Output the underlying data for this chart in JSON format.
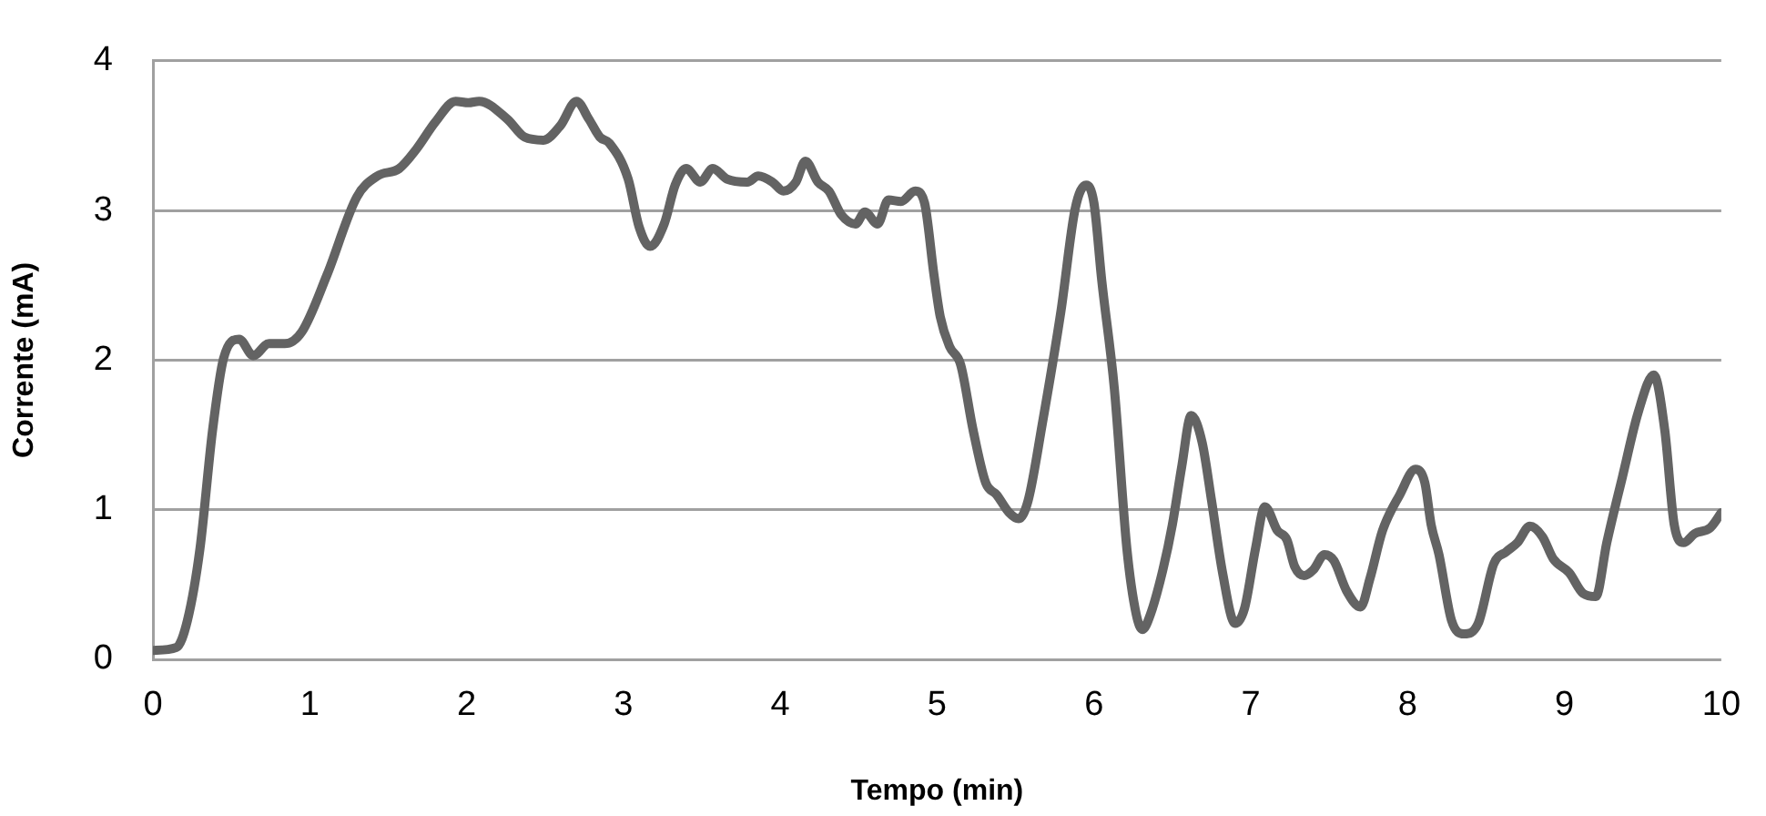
{
  "chart_data": {
    "type": "line",
    "xlabel": "Tempo (min)",
    "ylabel": "Corrente (mA)",
    "xlim": [
      0,
      10
    ],
    "xticks": [
      0,
      1,
      2,
      3,
      4,
      5,
      6,
      7,
      8,
      9,
      10
    ],
    "ylim": [
      0,
      4
    ],
    "yticks": [
      0,
      1,
      2,
      3,
      4
    ],
    "grid": "y",
    "legend": false,
    "marker": "none",
    "line_style": "solid",
    "series": [
      {
        "color": "#636363",
        "x": [
          0,
          0.15,
          0.22,
          0.3,
          0.38,
          0.45,
          0.55,
          0.64,
          0.74,
          0.84,
          0.95,
          1.11,
          1.3,
          1.43,
          1.57,
          1.68,
          1.8,
          1.93,
          2.01,
          2.08,
          2.26,
          2.37,
          2.49,
          2.6,
          2.7,
          2.78,
          2.85,
          2.91,
          3.03,
          3.1,
          3.17,
          3.26,
          3.33,
          3.4,
          3.49,
          3.57,
          3.66,
          3.79,
          3.86,
          3.95,
          4.02,
          4.1,
          4.16,
          4.24,
          4.31,
          4.39,
          4.48,
          4.54,
          4.62,
          4.69,
          4.77,
          4.86,
          4.92,
          4.98,
          5.02,
          5.08,
          5.15,
          5.23,
          5.31,
          5.38,
          5.46,
          5.52,
          5.58,
          5.67,
          5.79,
          5.88,
          5.95,
          6.0,
          6.05,
          6.13,
          6.21,
          6.27,
          6.31,
          6.36,
          6.44,
          6.5,
          6.56,
          6.62,
          6.69,
          6.75,
          6.82,
          6.9,
          6.96,
          7.03,
          7.09,
          7.17,
          7.23,
          7.28,
          7.34,
          7.4,
          7.47,
          7.53,
          7.61,
          7.7,
          7.76,
          7.84,
          7.95,
          8.05,
          8.11,
          8.15,
          8.2,
          8.28,
          8.36,
          8.45,
          8.55,
          8.63,
          8.7,
          8.78,
          8.86,
          8.93,
          9.03,
          9.12,
          9.2,
          9.27,
          9.37,
          9.47,
          9.57,
          9.64,
          9.7,
          9.76,
          9.83,
          9.93,
          10
        ],
        "values": [
          0.06,
          0.08,
          0.26,
          0.74,
          1.53,
          2.01,
          2.14,
          2.03,
          2.11,
          2.11,
          2.19,
          2.57,
          3.09,
          3.23,
          3.28,
          3.41,
          3.59,
          3.73,
          3.72,
          3.73,
          3.61,
          3.49,
          3.47,
          3.57,
          3.73,
          3.61,
          3.49,
          3.45,
          3.21,
          2.89,
          2.76,
          2.91,
          3.17,
          3.28,
          3.19,
          3.28,
          3.21,
          3.19,
          3.23,
          3.19,
          3.13,
          3.19,
          3.33,
          3.19,
          3.13,
          2.97,
          2.91,
          2.99,
          2.91,
          3.07,
          3.06,
          3.13,
          3.05,
          2.57,
          2.29,
          2.09,
          1.97,
          1.53,
          1.18,
          1.1,
          0.98,
          0.94,
          1.06,
          1.57,
          2.33,
          3.01,
          3.17,
          3.05,
          2.53,
          1.81,
          0.74,
          0.3,
          0.2,
          0.3,
          0.6,
          0.9,
          1.29,
          1.63,
          1.45,
          1.06,
          0.58,
          0.24,
          0.34,
          0.74,
          1.02,
          0.86,
          0.8,
          0.62,
          0.56,
          0.6,
          0.7,
          0.66,
          0.46,
          0.35,
          0.54,
          0.86,
          1.1,
          1.27,
          1.18,
          0.9,
          0.7,
          0.26,
          0.17,
          0.24,
          0.64,
          0.72,
          0.78,
          0.89,
          0.82,
          0.67,
          0.58,
          0.44,
          0.42,
          0.78,
          1.22,
          1.65,
          1.9,
          1.53,
          0.9,
          0.78,
          0.84,
          0.88,
          0.98
        ]
      }
    ]
  }
}
